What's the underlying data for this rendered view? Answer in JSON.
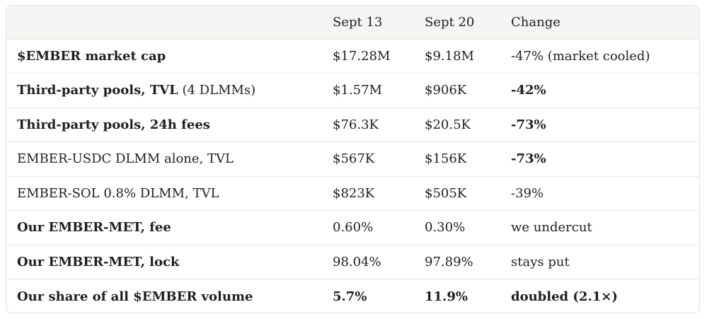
{
  "table": {
    "headers": [
      "",
      "Sept 13",
      "Sept 20",
      "Change"
    ],
    "rows": [
      {
        "metric": "$EMBER market cap",
        "metric_suffix": "",
        "metric_bold": true,
        "sept13": "$17.28M",
        "sept20": "$9.18M",
        "change": "-47% (market cooled)",
        "values_bold": false,
        "change_bold": false
      },
      {
        "metric": "Third-party pools, TVL",
        "metric_suffix": " (4 DLMMs)",
        "metric_bold": true,
        "sept13": "$1.57M",
        "sept20": "$906K",
        "change": "-42%",
        "values_bold": false,
        "change_bold": true
      },
      {
        "metric": "Third-party pools, 24h fees",
        "metric_suffix": "",
        "metric_bold": true,
        "sept13": "$76.3K",
        "sept20": "$20.5K",
        "change": "-73%",
        "values_bold": false,
        "change_bold": true
      },
      {
        "metric": "EMBER-USDC DLMM alone, TVL",
        "metric_suffix": "",
        "metric_bold": false,
        "sept13": "$567K",
        "sept20": "$156K",
        "change": "-73%",
        "values_bold": false,
        "change_bold": true
      },
      {
        "metric": "EMBER-SOL 0.8% DLMM, TVL",
        "metric_suffix": "",
        "metric_bold": false,
        "sept13": "$823K",
        "sept20": "$505K",
        "change": "-39%",
        "values_bold": false,
        "change_bold": false
      },
      {
        "metric": "Our EMBER-MET, fee",
        "metric_suffix": "",
        "metric_bold": true,
        "sept13": "0.60%",
        "sept20": "0.30%",
        "change": "we undercut",
        "values_bold": false,
        "change_bold": false
      },
      {
        "metric": "Our EMBER-MET, lock",
        "metric_suffix": "",
        "metric_bold": true,
        "sept13": "98.04%",
        "sept20": "97.89%",
        "change": "stays put",
        "values_bold": false,
        "change_bold": false
      },
      {
        "metric": "Our share of all $EMBER volume",
        "metric_suffix": "",
        "metric_bold": true,
        "sept13": "5.7%",
        "sept20": "11.9%",
        "change": "doubled (2.1×)",
        "values_bold": true,
        "change_bold": true
      }
    ]
  }
}
